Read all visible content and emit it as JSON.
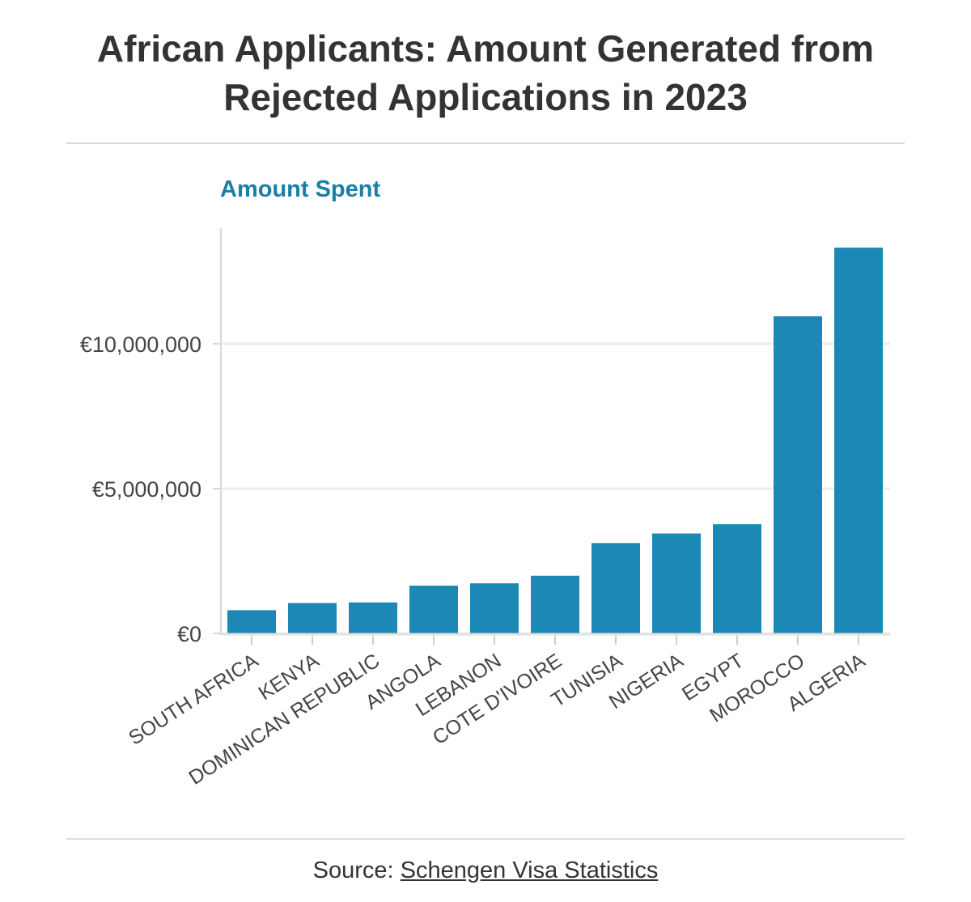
{
  "title": "African Applicants: Amount Generated from Rejected Applications in 2023",
  "source": {
    "prefix": "Source: ",
    "link_text": "Schengen Visa Statistics"
  },
  "colors": {
    "bar": "#1b88b6",
    "accent": "#1a7fa8",
    "grid": "#ececec",
    "text": "#333333"
  },
  "chart_data": {
    "type": "bar",
    "title": "African Applicants: Amount Generated from Rejected Applications in 2023",
    "ylabel": "Amount Spent",
    "xlabel": "",
    "categories": [
      "SOUTH AFRICA",
      "KENYA",
      "DOMINICAN REPUBLIC",
      "ANGOLA",
      "LEBANON",
      "COTE D'IVOIRE",
      "TUNISIA",
      "NIGERIA",
      "EGYPT",
      "MOROCCO",
      "ALGERIA"
    ],
    "values": [
      800000,
      1050000,
      1070000,
      1650000,
      1730000,
      1990000,
      3120000,
      3450000,
      3770000,
      10950000,
      13320000
    ],
    "ylim": [
      0,
      14000000
    ],
    "yticks": [
      0,
      5000000,
      10000000
    ],
    "ytick_labels": [
      "€0",
      "€5,000,000",
      "€10,000,000"
    ],
    "grid": true
  }
}
